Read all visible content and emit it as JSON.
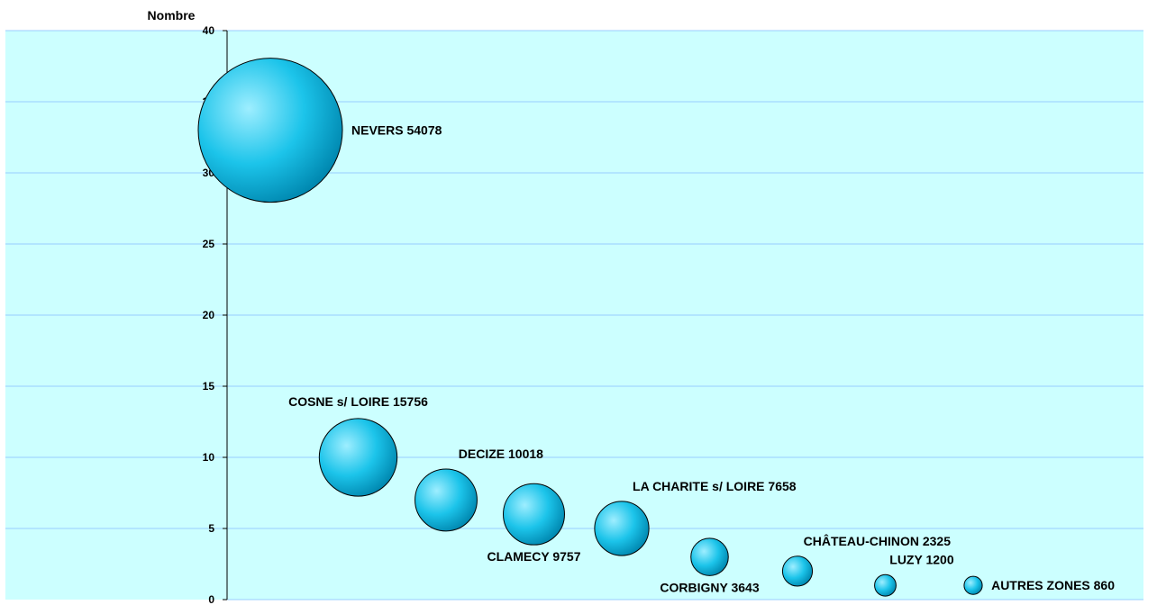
{
  "chart_data": {
    "type": "bubble",
    "ylabel": "Nombre",
    "ylim": [
      0,
      40
    ],
    "y_ticks": [
      0,
      5,
      10,
      15,
      20,
      25,
      30,
      35,
      40
    ],
    "grid": true,
    "legend": "none",
    "colors": {
      "plot_bg": "#ccffff",
      "grid": "#99ccff",
      "bubble": "#1cc4ea",
      "bubble_highlight": "#9eeeff",
      "bubble_shadow": "#0088b0"
    },
    "points": [
      {
        "name": "NEVERS",
        "size": 54078,
        "x": 1,
        "y": 33,
        "label": "NEVERS 54078",
        "label_pos": "right"
      },
      {
        "name": "COSNE s/ LOIRE",
        "size": 15756,
        "x": 2,
        "y": 10,
        "label": "COSNE s/ LOIRE 15756",
        "label_pos": "top"
      },
      {
        "name": "DECIZE",
        "size": 10018,
        "x": 3,
        "y": 7,
        "label": "DECIZE 10018",
        "label_pos": "top-right"
      },
      {
        "name": "CLAMECY",
        "size": 9757,
        "x": 4,
        "y": 6,
        "label": "CLAMECY 9757",
        "label_pos": "bottom"
      },
      {
        "name": "LA CHARITE s/ LOIRE",
        "size": 7658,
        "x": 5,
        "y": 5,
        "label": "LA CHARITE s/ LOIRE 7658",
        "label_pos": "top-right"
      },
      {
        "name": "CORBIGNY",
        "size": 3643,
        "x": 6,
        "y": 3,
        "label": "CORBIGNY 3643",
        "label_pos": "bottom"
      },
      {
        "name": "CHÂTEAU-CHINON",
        "size": 2325,
        "x": 7,
        "y": 2,
        "label": "CHÂTEAU-CHINON 2325",
        "label_pos": "top-right"
      },
      {
        "name": "LUZY",
        "size": 1200,
        "x": 8,
        "y": 1,
        "label": "LUZY 1200",
        "label_pos": "top-right"
      },
      {
        "name": "AUTRES ZONES",
        "size": 860,
        "x": 9,
        "y": 1,
        "label": "AUTRES ZONES 860",
        "label_pos": "right"
      }
    ]
  }
}
